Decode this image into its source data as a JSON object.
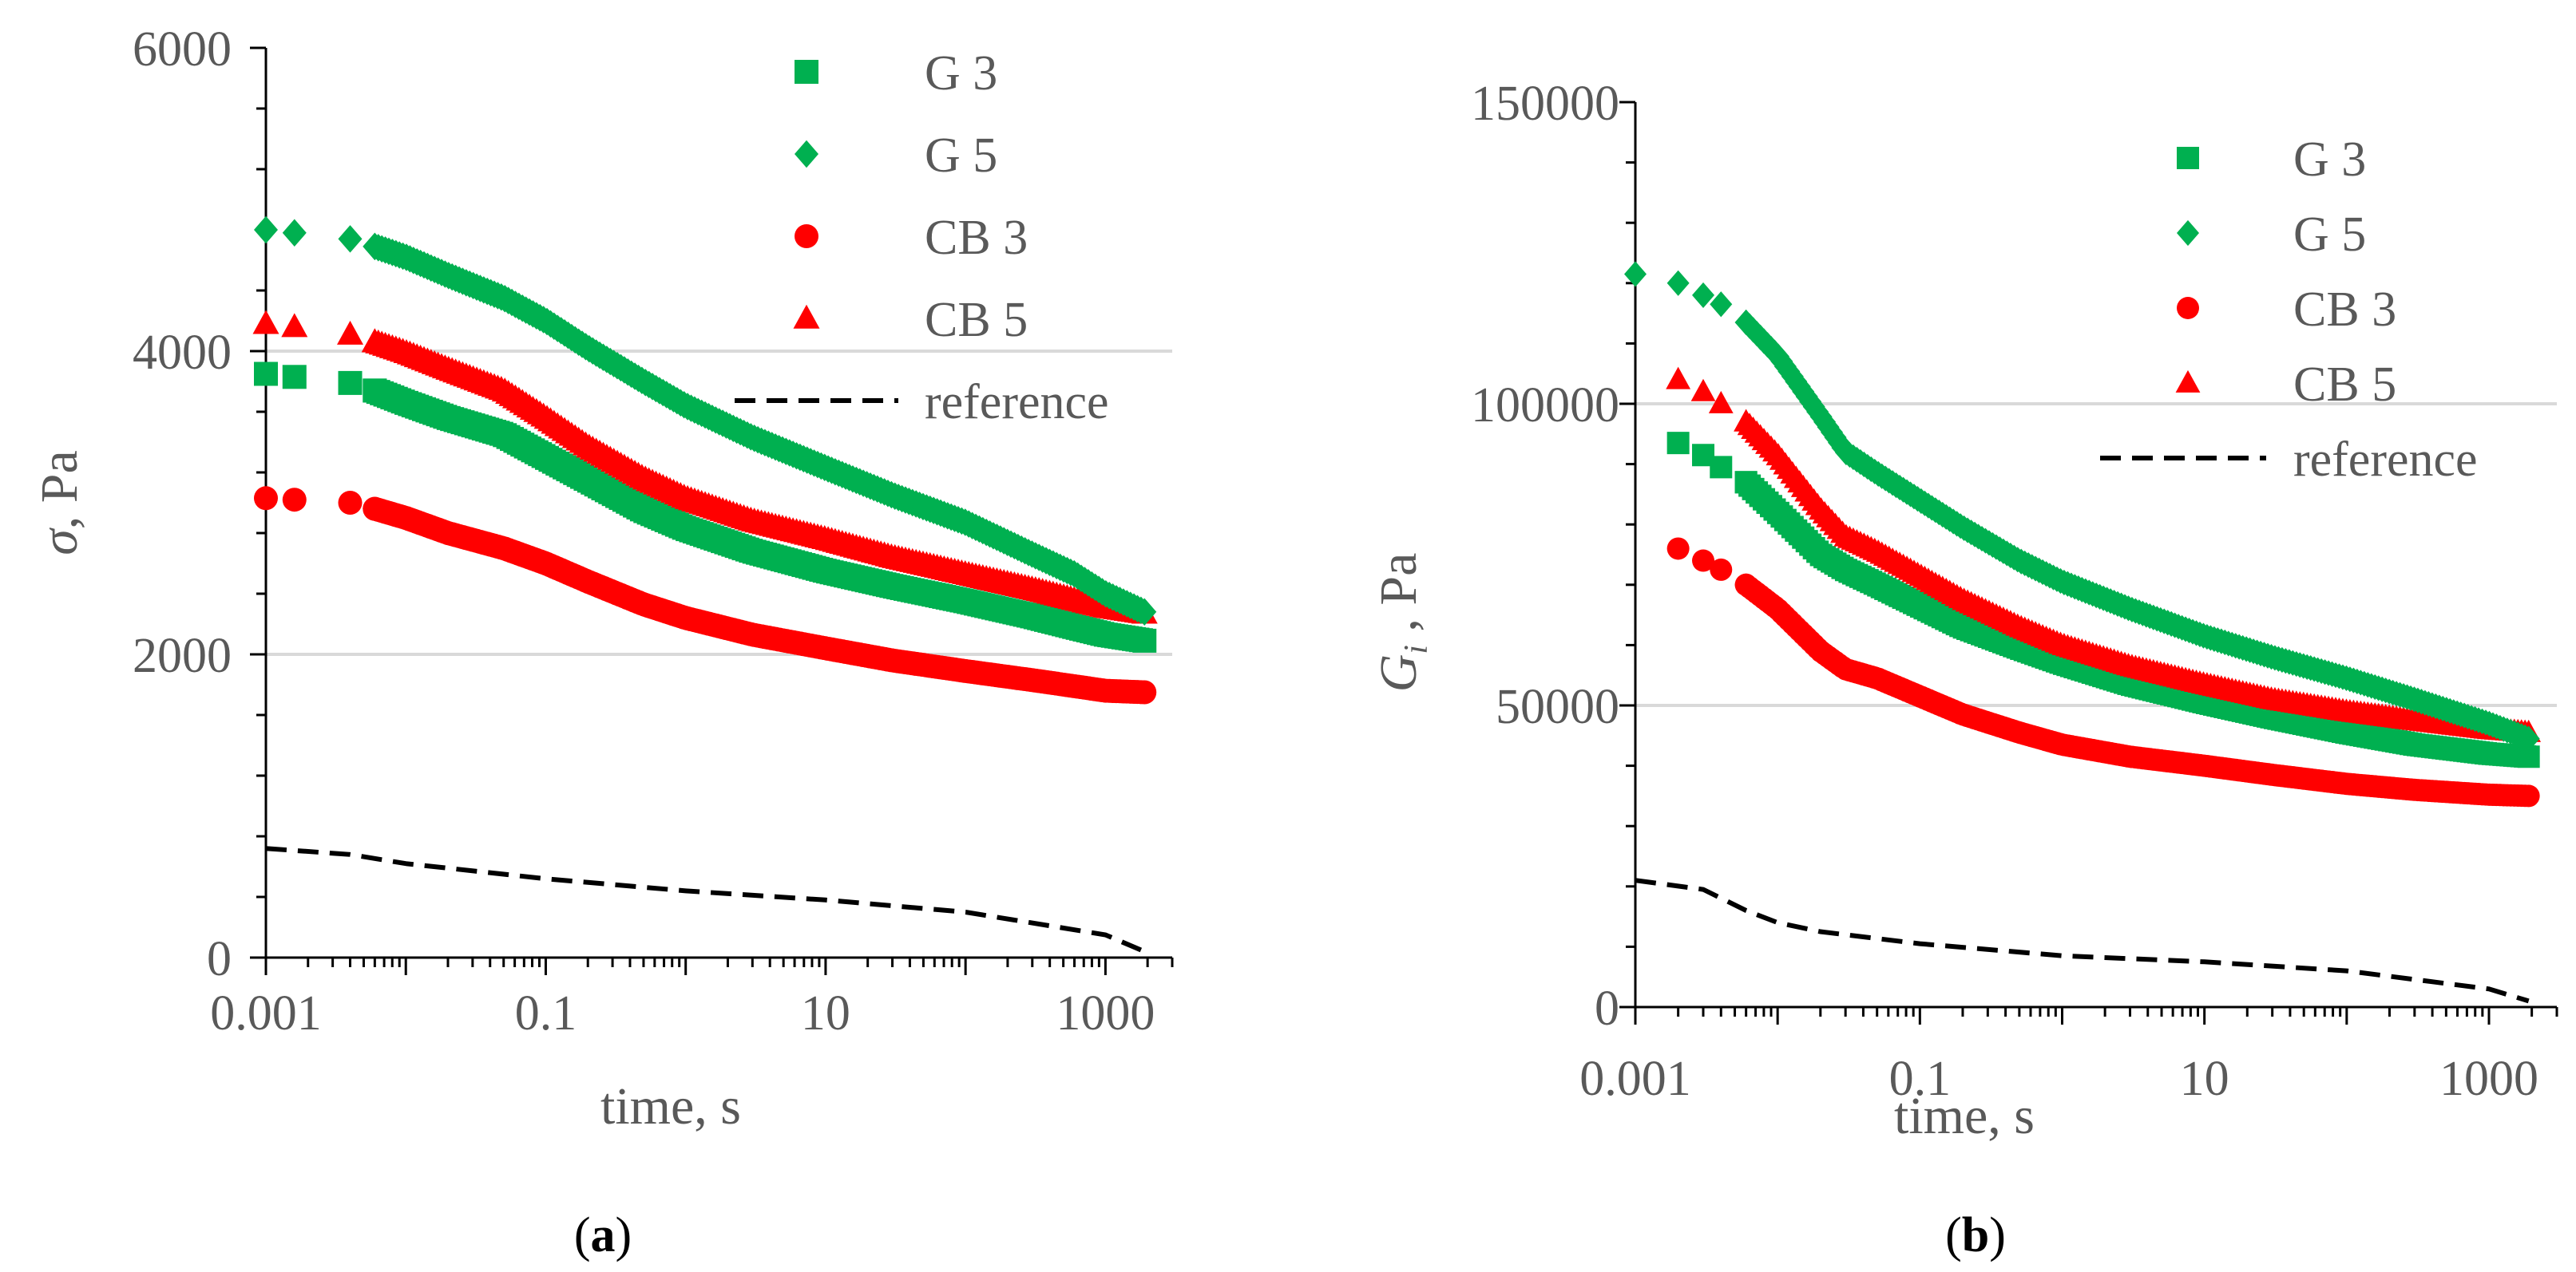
{
  "chart_data": [
    {
      "type": "scatter",
      "panel_label": "a",
      "xlabel": "time, s",
      "ylabel": {
        "symbol": "σ",
        "unit": ", Pa"
      },
      "x_scale": "log",
      "xlim": [
        0.001,
        3000
      ],
      "ylim": [
        0,
        6000
      ],
      "x_ticks": [
        {
          "value": 0.001,
          "label": "0.001"
        },
        {
          "value": 0.1,
          "label": "0.1"
        },
        {
          "value": 10,
          "label": "10"
        },
        {
          "value": 1000,
          "label": "1000"
        }
      ],
      "y_ticks": [
        {
          "value": 0,
          "label": "0"
        },
        {
          "value": 2000,
          "label": "2000"
        },
        {
          "value": 4000,
          "label": "4000"
        },
        {
          "value": 6000,
          "label": "6000"
        }
      ],
      "gridlines_y": [
        2000,
        4000
      ],
      "legend": "top-right",
      "series": [
        {
          "name": "G 3",
          "color": "#00b050",
          "marker": "square",
          "points": [
            [
              0.001,
              3850
            ],
            [
              0.0016,
              3830
            ],
            [
              0.004,
              3790
            ],
            [
              0.006,
              3740
            ],
            [
              0.01,
              3660
            ],
            [
              0.02,
              3560
            ],
            [
              0.05,
              3450
            ],
            [
              0.1,
              3300
            ],
            [
              0.2,
              3150
            ],
            [
              0.5,
              2950
            ],
            [
              1,
              2830
            ],
            [
              3,
              2680
            ],
            [
              10,
              2550
            ],
            [
              30,
              2450
            ],
            [
              100,
              2350
            ],
            [
              300,
              2250
            ],
            [
              600,
              2180
            ],
            [
              1000,
              2130
            ],
            [
              1900,
              2090
            ]
          ]
        },
        {
          "name": "G 5",
          "color": "#00b050",
          "marker": "diamond",
          "points": [
            [
              0.001,
              4800
            ],
            [
              0.0016,
              4780
            ],
            [
              0.004,
              4740
            ],
            [
              0.006,
              4690
            ],
            [
              0.01,
              4620
            ],
            [
              0.02,
              4500
            ],
            [
              0.05,
              4350
            ],
            [
              0.1,
              4200
            ],
            [
              0.2,
              4020
            ],
            [
              0.5,
              3800
            ],
            [
              1,
              3640
            ],
            [
              3,
              3430
            ],
            [
              10,
              3230
            ],
            [
              30,
              3050
            ],
            [
              100,
              2870
            ],
            [
              300,
              2660
            ],
            [
              600,
              2530
            ],
            [
              1000,
              2400
            ],
            [
              1900,
              2280
            ]
          ]
        },
        {
          "name": "CB 3",
          "color": "#ff0000",
          "marker": "circle",
          "points": [
            [
              0.001,
              3030
            ],
            [
              0.0016,
              3020
            ],
            [
              0.004,
              3000
            ],
            [
              0.006,
              2960
            ],
            [
              0.01,
              2900
            ],
            [
              0.02,
              2800
            ],
            [
              0.05,
              2700
            ],
            [
              0.1,
              2600
            ],
            [
              0.2,
              2480
            ],
            [
              0.5,
              2330
            ],
            [
              1,
              2240
            ],
            [
              3,
              2130
            ],
            [
              10,
              2040
            ],
            [
              30,
              1960
            ],
            [
              100,
              1890
            ],
            [
              300,
              1830
            ],
            [
              600,
              1790
            ],
            [
              1000,
              1760
            ],
            [
              1900,
              1750
            ]
          ]
        },
        {
          "name": "CB 5",
          "color": "#ff0000",
          "marker": "triangle",
          "points": [
            [
              0.001,
              4180
            ],
            [
              0.0016,
              4160
            ],
            [
              0.004,
              4110
            ],
            [
              0.006,
              4060
            ],
            [
              0.01,
              3990
            ],
            [
              0.02,
              3880
            ],
            [
              0.05,
              3740
            ],
            [
              0.1,
              3560
            ],
            [
              0.2,
              3370
            ],
            [
              0.5,
              3160
            ],
            [
              1,
              3030
            ],
            [
              3,
              2880
            ],
            [
              10,
              2760
            ],
            [
              30,
              2640
            ],
            [
              100,
              2530
            ],
            [
              300,
              2430
            ],
            [
              600,
              2360
            ],
            [
              1000,
              2310
            ],
            [
              1900,
              2270
            ]
          ]
        },
        {
          "name": "reference",
          "color": "#000000",
          "marker": "dashed-line",
          "points": [
            [
              0.001,
              720
            ],
            [
              0.004,
              680
            ],
            [
              0.01,
              620
            ],
            [
              0.1,
              520
            ],
            [
              1,
              440
            ],
            [
              10,
              380
            ],
            [
              100,
              300
            ],
            [
              1000,
              150
            ],
            [
              1900,
              40
            ]
          ]
        }
      ]
    },
    {
      "type": "scatter",
      "panel_label": "b",
      "xlabel": "time, s",
      "ylabel": {
        "symbol": "G",
        "subscript": "i",
        "unit": " , Pa"
      },
      "x_scale": "log",
      "xlim": [
        0.001,
        3000
      ],
      "ylim": [
        0,
        150000
      ],
      "x_ticks": [
        {
          "value": 0.001,
          "label": "0.001"
        },
        {
          "value": 0.1,
          "label": "0.1"
        },
        {
          "value": 10,
          "label": "10"
        },
        {
          "value": 1000,
          "label": "1000"
        }
      ],
      "y_ticks": [
        {
          "value": 0,
          "label": "0"
        },
        {
          "value": 50000,
          "label": "50000"
        },
        {
          "value": 100000,
          "label": "100000"
        },
        {
          "value": 150000,
          "label": "150000"
        }
      ],
      "gridlines_y": [
        50000,
        100000
      ],
      "legend": "top-right",
      "series": [
        {
          "name": "G 3",
          "color": "#00b050",
          "marker": "square",
          "points": [
            [
              0.002,
              93500
            ],
            [
              0.003,
              91500
            ],
            [
              0.004,
              89500
            ],
            [
              0.006,
              87000
            ],
            [
              0.01,
              82000
            ],
            [
              0.02,
              75000
            ],
            [
              0.03,
              72500
            ],
            [
              0.05,
              70000
            ],
            [
              0.1,
              66500
            ],
            [
              0.2,
              63000
            ],
            [
              0.5,
              59500
            ],
            [
              1,
              57000
            ],
            [
              3,
              53500
            ],
            [
              10,
              50500
            ],
            [
              30,
              48000
            ],
            [
              100,
              45500
            ],
            [
              300,
              43500
            ],
            [
              1000,
              42000
            ],
            [
              1900,
              41500
            ]
          ]
        },
        {
          "name": "G 5",
          "color": "#00b050",
          "marker": "diamond",
          "points": [
            [
              0.001,
              121500
            ],
            [
              0.002,
              120000
            ],
            [
              0.003,
              118000
            ],
            [
              0.004,
              116500
            ],
            [
              0.006,
              113500
            ],
            [
              0.01,
              108000
            ],
            [
              0.02,
              98000
            ],
            [
              0.03,
              92000
            ],
            [
              0.05,
              88500
            ],
            [
              0.1,
              84000
            ],
            [
              0.2,
              79500
            ],
            [
              0.5,
              74000
            ],
            [
              1,
              70500
            ],
            [
              3,
              66000
            ],
            [
              10,
              61500
            ],
            [
              30,
              58000
            ],
            [
              100,
              54500
            ],
            [
              300,
              51000
            ],
            [
              1000,
              47000
            ],
            [
              1900,
              44500
            ]
          ]
        },
        {
          "name": "CB 3",
          "color": "#ff0000",
          "marker": "circle",
          "points": [
            [
              0.002,
              76000
            ],
            [
              0.003,
              74000
            ],
            [
              0.004,
              72500
            ],
            [
              0.006,
              70000
            ],
            [
              0.01,
              66000
            ],
            [
              0.02,
              59000
            ],
            [
              0.03,
              56000
            ],
            [
              0.05,
              54500
            ],
            [
              0.1,
              51500
            ],
            [
              0.2,
              48500
            ],
            [
              0.5,
              45500
            ],
            [
              1,
              43500
            ],
            [
              3,
              41500
            ],
            [
              10,
              40000
            ],
            [
              30,
              38500
            ],
            [
              100,
              37000
            ],
            [
              300,
              36000
            ],
            [
              1000,
              35200
            ],
            [
              1900,
              35000
            ]
          ]
        },
        {
          "name": "CB 5",
          "color": "#ff0000",
          "marker": "triangle",
          "points": [
            [
              0.002,
              104000
            ],
            [
              0.003,
              102000
            ],
            [
              0.004,
              100000
            ],
            [
              0.006,
              97000
            ],
            [
              0.01,
              91500
            ],
            [
              0.02,
              82500
            ],
            [
              0.03,
              78000
            ],
            [
              0.05,
              75500
            ],
            [
              0.1,
              71500
            ],
            [
              0.2,
              67500
            ],
            [
              0.5,
              63000
            ],
            [
              1,
              60000
            ],
            [
              3,
              56500
            ],
            [
              10,
              53500
            ],
            [
              30,
              51000
            ],
            [
              100,
              49000
            ],
            [
              300,
              47500
            ],
            [
              1000,
              46000
            ],
            [
              1900,
              45500
            ]
          ]
        },
        {
          "name": "reference",
          "color": "#000000",
          "marker": "dashed-line",
          "points": [
            [
              0.001,
              21000
            ],
            [
              0.003,
              19500
            ],
            [
              0.006,
              16000
            ],
            [
              0.01,
              14000
            ],
            [
              0.02,
              12500
            ],
            [
              0.1,
              10500
            ],
            [
              1,
              8500
            ],
            [
              10,
              7500
            ],
            [
              100,
              6000
            ],
            [
              1000,
              3000
            ],
            [
              1900,
              1000
            ]
          ]
        }
      ]
    }
  ]
}
